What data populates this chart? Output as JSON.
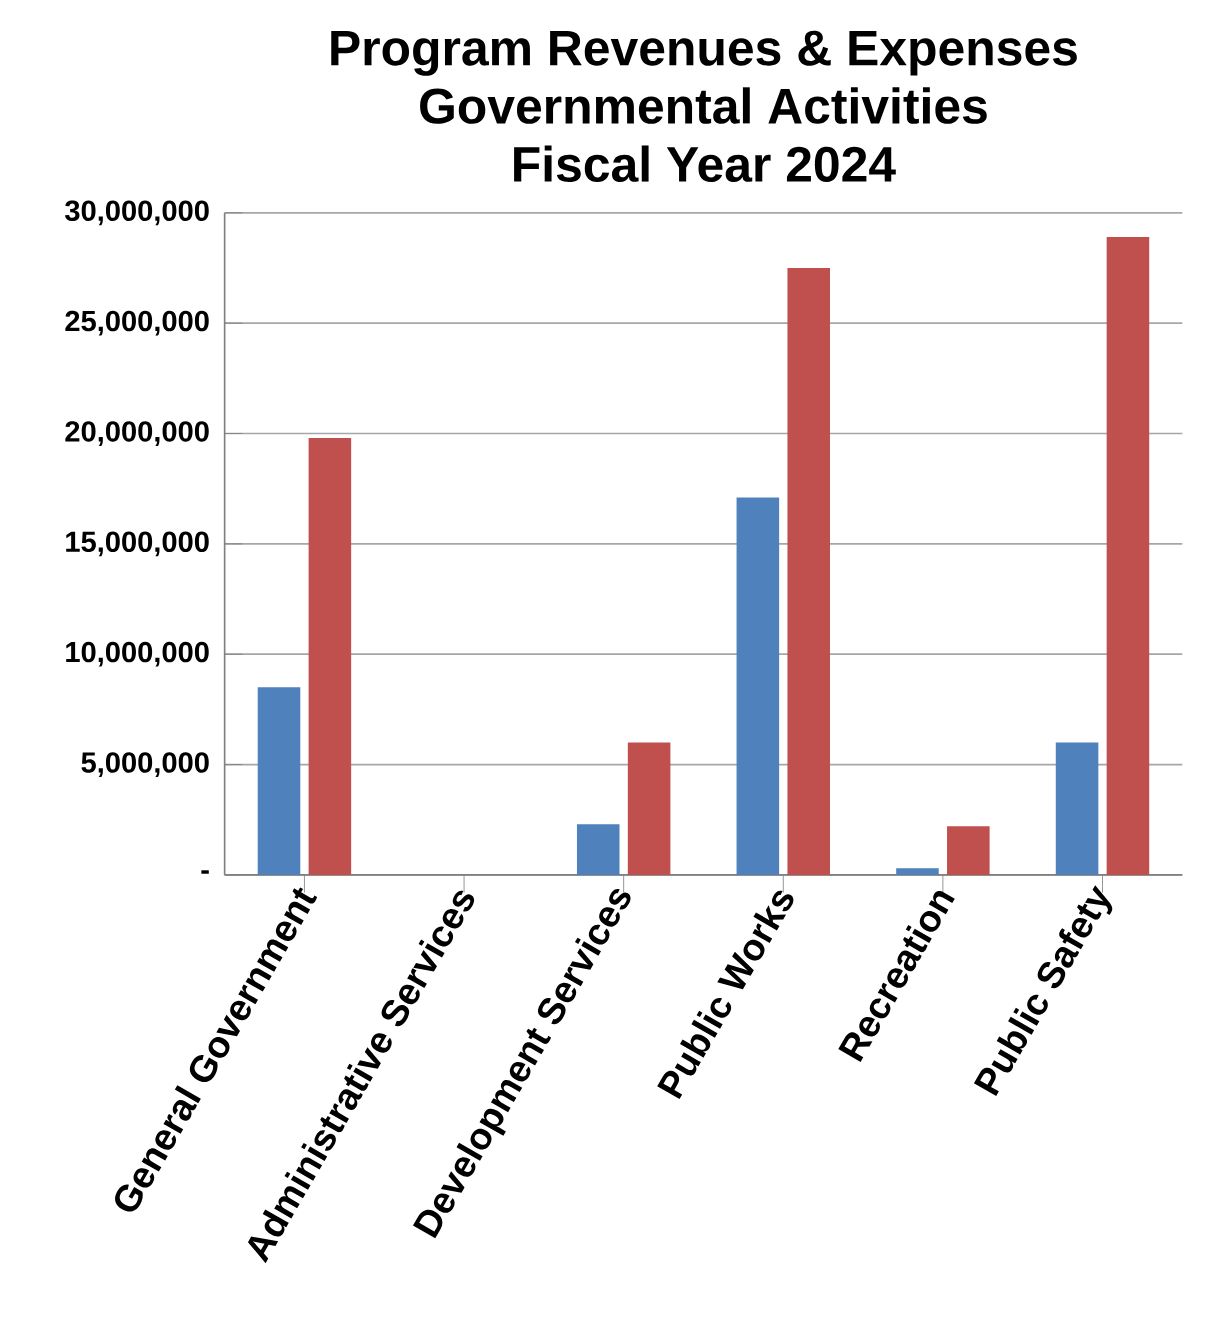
{
  "chart_data": {
    "type": "bar",
    "title": "Program Revenues & Expenses\nGovernmental Activities\nFiscal Year 2024",
    "categories": [
      "General Government",
      "Administrative Services",
      "Development Services",
      "Public Works",
      "Recreation",
      "Public Safety"
    ],
    "series": [
      {
        "color": "#4f81bd",
        "values": [
          8500000,
          0,
          2300000,
          17100000,
          300000,
          6000000
        ]
      },
      {
        "color": "#c0504d",
        "values": [
          19800000,
          0,
          6000000,
          27500000,
          2200000,
          28900000
        ]
      }
    ],
    "ylim": [
      0,
      30000000
    ],
    "yticks": [
      {
        "value": 0,
        "label": "-"
      },
      {
        "value": 5000000,
        "label": "5,000,000"
      },
      {
        "value": 10000000,
        "label": "10,000,000"
      },
      {
        "value": 15000000,
        "label": "15,000,000"
      },
      {
        "value": 20000000,
        "label": "20,000,000"
      },
      {
        "value": 25000000,
        "label": "25,000,000"
      },
      {
        "value": 30000000,
        "label": "30,000,000"
      }
    ],
    "grid": "y"
  }
}
